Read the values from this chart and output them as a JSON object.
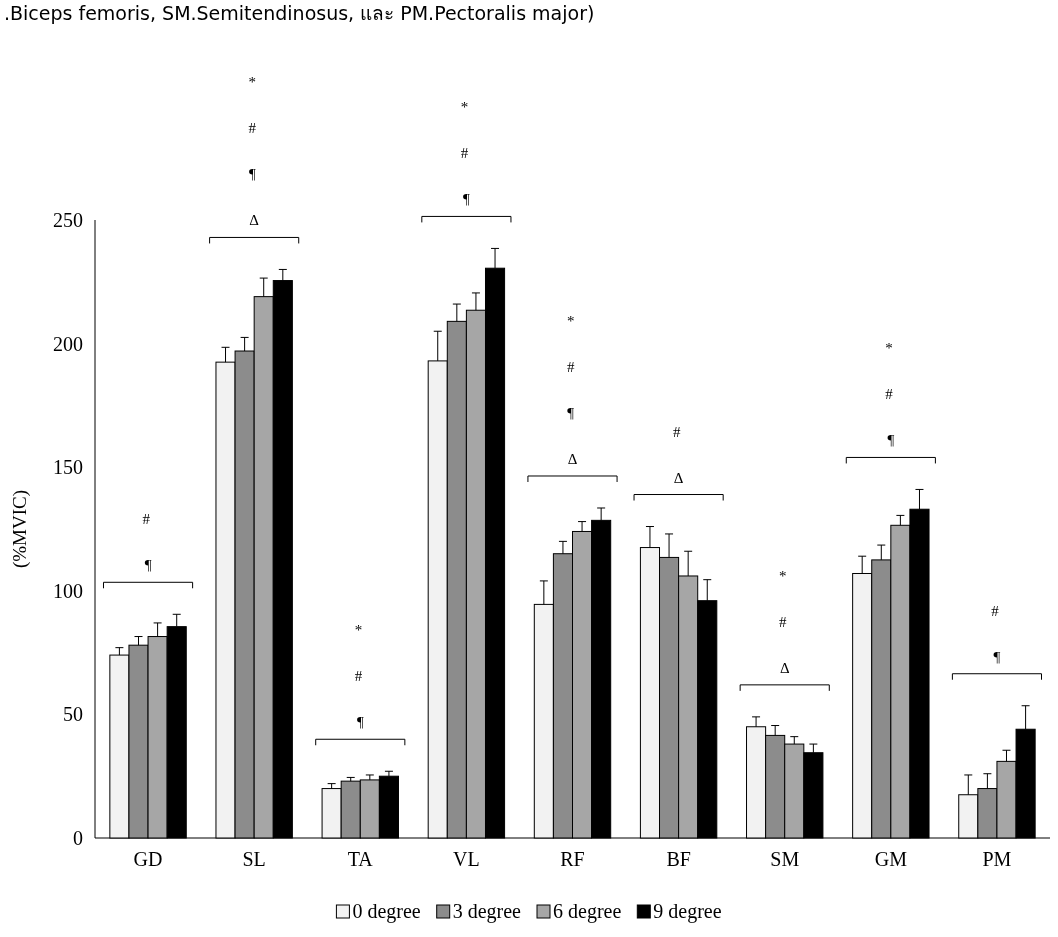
{
  "chart_data": {
    "type": "bar",
    "title": ".Biceps femoris, SM.Semitendinosus, และ PM.Pectoralis major)",
    "ylabel": "(%MVIC)",
    "categories": [
      "GD",
      "SL",
      "TA",
      "VL",
      "RF",
      "BF",
      "SM",
      "GM",
      "PM"
    ],
    "ylim": [
      0,
      250
    ],
    "yticks": [
      0,
      50,
      100,
      150,
      200,
      250
    ],
    "legend": "bottom",
    "series": [
      {
        "name": "0 degree",
        "color": "#f2f2f2",
        "values": [
          74,
          192.5,
          20,
          193,
          94.5,
          117.5,
          45,
          107,
          17.5
        ],
        "errors": [
          [
            74,
            77
          ],
          [
            192.5,
            198.5
          ],
          [
            20,
            22
          ],
          [
            193,
            205
          ],
          [
            94.5,
            104
          ],
          [
            117.5,
            126
          ],
          [
            45,
            49
          ],
          [
            107,
            114
          ],
          [
            17.5,
            25.5
          ]
        ]
      },
      {
        "name": "3 degree",
        "color": "#8c8c8c",
        "values": [
          78,
          197,
          23,
          209,
          115,
          113.5,
          41.5,
          112.5,
          20
        ],
        "errors": [
          [
            78,
            81.5
          ],
          [
            197,
            202.5
          ],
          [
            23,
            24.5
          ],
          [
            209,
            216
          ],
          [
            115,
            120
          ],
          [
            113.5,
            123
          ],
          [
            41.5,
            45.5
          ],
          [
            112.5,
            118.5
          ],
          [
            20,
            26
          ]
        ]
      },
      {
        "name": "6 degree",
        "color": "#a6a6a6",
        "values": [
          81.5,
          219,
          23.5,
          213.5,
          124,
          106,
          38,
          126.5,
          31
        ],
        "errors": [
          [
            81.5,
            87
          ],
          [
            219,
            226.5
          ],
          [
            23.5,
            25.5
          ],
          [
            213.5,
            220.5
          ],
          [
            124,
            128
          ],
          [
            106,
            116
          ],
          [
            38,
            41
          ],
          [
            126.5,
            130.5
          ],
          [
            31,
            35.5
          ]
        ]
      },
      {
        "name": "9 degree",
        "color": "#000000",
        "values": [
          85.5,
          225.5,
          25,
          230.5,
          128.5,
          96,
          34.5,
          133,
          44
        ],
        "errors": [
          [
            85.5,
            90.5
          ],
          [
            225.5,
            230
          ],
          [
            25,
            27
          ],
          [
            230.5,
            238.5
          ],
          [
            128.5,
            133.5
          ],
          [
            96,
            104.5
          ],
          [
            34.5,
            38
          ],
          [
            133,
            141
          ],
          [
            44,
            53.5
          ]
        ]
      }
    ],
    "annotations": [
      "# ¶",
      "* # ¶ Δ",
      "* # ¶",
      "* # ¶",
      "* # ¶ Δ",
      "# Δ",
      "* # Δ",
      "* # ¶",
      "# ¶"
    ]
  }
}
